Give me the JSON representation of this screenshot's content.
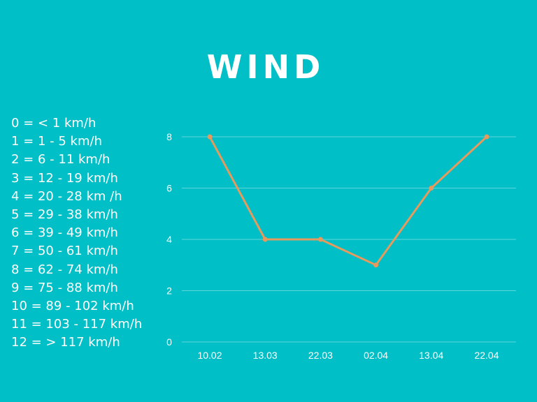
{
  "title": "WIND",
  "scale_legend": [
    "0 = < 1 km/h",
    "1 = 1 - 5 km/h",
    "2 = 6 - 11 km/h",
    "3 = 12 - 19 km/h",
    "4 = 20 - 28 km /h",
    "5 = 29 - 38 km/h",
    "6 = 39 - 49 km/h",
    "7 = 50 - 61 km/h",
    "8 = 62 - 74 km/h",
    "9 = 75 - 88 km/h",
    "10 = 89 - 102 km/h",
    "11 = 103 - 117 km/h",
    "12 = > 117 km/h"
  ],
  "colors": {
    "background": "#00BFC6",
    "line": "#E59A5E",
    "grid": "#5FD6DA",
    "text": "#FFFFFF"
  },
  "chart_data": {
    "type": "line",
    "title": "WIND",
    "categories": [
      "10.02",
      "13.03",
      "22.03",
      "02.04",
      "13.04",
      "22.04"
    ],
    "series": [
      {
        "values": [
          8,
          4,
          4,
          3,
          6,
          8
        ]
      }
    ],
    "ylim": [
      0,
      8
    ],
    "yticks": [
      0,
      2,
      4,
      6,
      8
    ],
    "grid": true,
    "markers": true
  }
}
